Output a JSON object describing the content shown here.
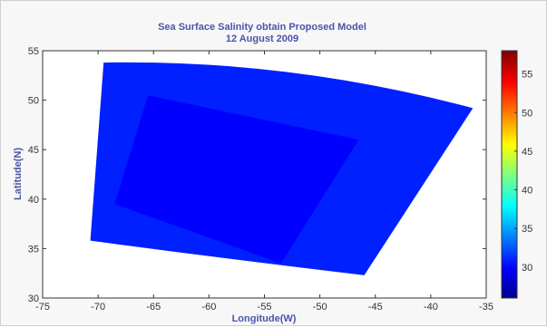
{
  "chart_data": {
    "type": "heatmap",
    "title": "Sea Surface Salinity obtain Proposed Model",
    "subtitle": "12 August 2009",
    "xlabel": "Longitude(W)",
    "ylabel": "Latitude(N)",
    "xlim": [
      -75,
      -35
    ],
    "ylim": [
      30,
      55
    ],
    "x_ticks": [
      -75,
      -70,
      -65,
      -60,
      -55,
      -50,
      -45,
      -40,
      -35
    ],
    "y_ticks": [
      30,
      35,
      40,
      45,
      50,
      55
    ],
    "grid": false,
    "colorbar": {
      "range": [
        26,
        58
      ],
      "ticks": [
        30,
        35,
        40,
        45,
        50,
        55
      ],
      "colormap": "jet"
    },
    "swath_corners": [
      {
        "lon": -69.5,
        "lat": 53.8
      },
      {
        "lon": -36.2,
        "lat": 49.2
      },
      {
        "lon": -46.0,
        "lat": 32.3
      },
      {
        "lon": -70.7,
        "lat": 35.8
      }
    ],
    "swath_value": 31,
    "inner_scene_corners": [
      {
        "lon": -65.5,
        "lat": 50.5
      },
      {
        "lon": -46.5,
        "lat": 46.0
      },
      {
        "lon": -53.5,
        "lat": 33.5
      },
      {
        "lon": -68.5,
        "lat": 39.5
      }
    ],
    "inner_scene_value": 30
  }
}
